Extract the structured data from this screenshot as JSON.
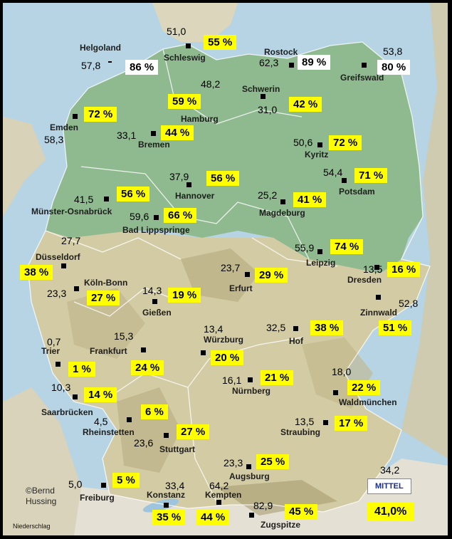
{
  "map": {
    "copyright_line1": "©Bernd",
    "copyright_line2": "Hussing",
    "legend_label": "Niederschlag"
  },
  "mittel": {
    "label": "MITTEL",
    "value_mm": "34,2",
    "percent": "41,0%"
  },
  "stations": [
    {
      "id": "helgoland",
      "name": "Helgoland",
      "value": "57,8",
      "percent": "86 %",
      "box": "white"
    },
    {
      "id": "schleswig",
      "name": "Schleswig",
      "value": "51,0",
      "percent": "55 %",
      "box": "yellow"
    },
    {
      "id": "rostock",
      "name": "Rostock",
      "value": "62,3",
      "percent": "89 %",
      "box": "white"
    },
    {
      "id": "greifswald",
      "name": "Greifswald",
      "value": "53,8",
      "percent": "80 %",
      "box": "white"
    },
    {
      "id": "hamburg",
      "name": "Hamburg",
      "value": "48,2",
      "percent": "59 %",
      "box": "yellow"
    },
    {
      "id": "schwerin",
      "name": "Schwerin",
      "value": "31,0",
      "percent": "42 %",
      "box": "yellow"
    },
    {
      "id": "emden",
      "name": "Emden",
      "value": "58,3",
      "percent": "72 %",
      "box": "yellow"
    },
    {
      "id": "bremen",
      "name": "Bremen",
      "value": "33,1",
      "percent": "44 %",
      "box": "yellow"
    },
    {
      "id": "kyritz",
      "name": "Kyritz",
      "value": "50,6",
      "percent": "72 %",
      "box": "yellow"
    },
    {
      "id": "potsdam",
      "name": "Potsdam",
      "value": "54,4",
      "percent": "71 %",
      "box": "yellow"
    },
    {
      "id": "hannover",
      "name": "Hannover",
      "value": "37,9",
      "percent": "56 %",
      "box": "yellow"
    },
    {
      "id": "muenster",
      "name": "Münster-Osnabrück",
      "value": "41,5",
      "percent": "56 %",
      "box": "yellow"
    },
    {
      "id": "magdeburg",
      "name": "Magdeburg",
      "value": "25,2",
      "percent": "41 %",
      "box": "yellow"
    },
    {
      "id": "badlippspringe",
      "name": "Bad Lippspringe",
      "value": "59,6",
      "percent": "66 %",
      "box": "yellow"
    },
    {
      "id": "duesseldorf",
      "name": "Düsseldorf",
      "value": "27,7",
      "percent": "38 %",
      "box": "yellow"
    },
    {
      "id": "leipzig",
      "name": "Leipzig",
      "value": "55,9",
      "percent": "74 %",
      "box": "yellow"
    },
    {
      "id": "erfurt",
      "name": "Erfurt",
      "value": "23,7",
      "percent": "29 %",
      "box": "yellow"
    },
    {
      "id": "dresden",
      "name": "Dresden",
      "value": "13,5",
      "percent": "16 %",
      "box": "yellow"
    },
    {
      "id": "koelnbonn",
      "name": "Köln-Bonn",
      "value": "23,3",
      "percent": "27 %",
      "box": "yellow"
    },
    {
      "id": "giessen",
      "name": "Gießen",
      "value": "14,3",
      "percent": "19 %",
      "box": "yellow"
    },
    {
      "id": "zinnwald",
      "name": "Zinnwald",
      "value": "52,8",
      "percent": "51 %",
      "box": "yellow"
    },
    {
      "id": "hof",
      "name": "Hof",
      "value": "32,5",
      "percent": "38 %",
      "box": "yellow"
    },
    {
      "id": "trier",
      "name": "Trier",
      "value": "0,7",
      "percent": "1 %",
      "box": "yellow"
    },
    {
      "id": "frankfurt",
      "name": "Frankfurt",
      "value": "15,3",
      "percent": "24 %",
      "box": "yellow"
    },
    {
      "id": "wuerzburg",
      "name": "Würzburg",
      "value": "13,4",
      "percent": "20 %",
      "box": "yellow"
    },
    {
      "id": "nuernberg",
      "name": "Nürnberg",
      "value": "16,1",
      "percent": "21 %",
      "box": "yellow"
    },
    {
      "id": "waldmuenchen",
      "name": "Waldmünchen",
      "value": "18,0",
      "percent": "22 %",
      "box": "yellow"
    },
    {
      "id": "saarbruecken",
      "name": "Saarbrücken",
      "value": "10,3",
      "percent": "14 %",
      "box": "yellow"
    },
    {
      "id": "rheinstetten",
      "name": "Rheinstetten",
      "value": "4,5",
      "percent": "6 %",
      "box": "yellow"
    },
    {
      "id": "stuttgart",
      "name": "Stuttgart",
      "value": "23,6",
      "percent": "27 %",
      "box": "yellow"
    },
    {
      "id": "straubing",
      "name": "Straubing",
      "value": "13,5",
      "percent": "17 %",
      "box": "yellow"
    },
    {
      "id": "augsburg",
      "name": "Augsburg",
      "value": "23,3",
      "percent": "25 %",
      "box": "yellow"
    },
    {
      "id": "freiburg",
      "name": "Freiburg",
      "value": "5,0",
      "percent": "5 %",
      "box": "yellow"
    },
    {
      "id": "konstanz",
      "name": "Konstanz",
      "value": "33,4",
      "percent": "35 %",
      "box": "yellow"
    },
    {
      "id": "kempten",
      "name": "Kempten",
      "value": "64,2",
      "percent": "44 %",
      "box": "yellow"
    },
    {
      "id": "zugspitze",
      "name": "Zugspitze",
      "value": "82,9",
      "percent": "45 %",
      "box": "yellow"
    }
  ]
}
